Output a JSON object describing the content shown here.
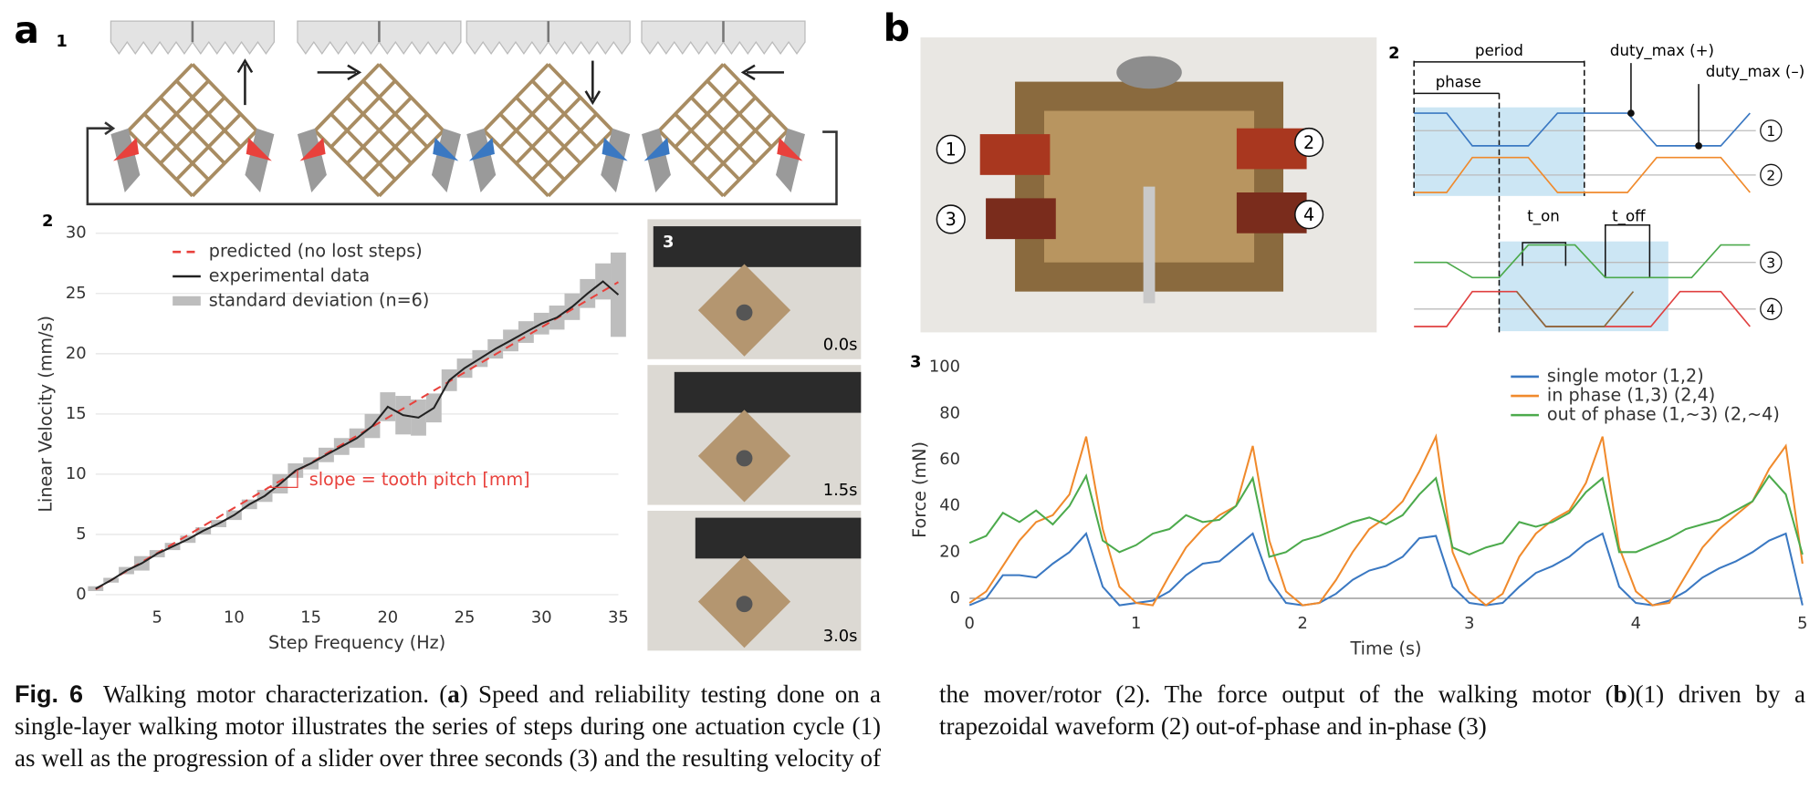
{
  "panels": {
    "a": "a",
    "b": "b",
    "a1": "1",
    "a2": "2",
    "a3": "3",
    "b1": "1",
    "b2": "2",
    "b3": "3"
  },
  "photo_a3": {
    "times": [
      "0.0s",
      "1.5s",
      "3.0s"
    ]
  },
  "photo_b1": {
    "labels": [
      "1",
      "2",
      "3",
      "4"
    ]
  },
  "waveform": {
    "period": "period",
    "phase": "phase",
    "duty_max_pos": "duty_max (+)",
    "duty_max_neg": "duty_max (–)",
    "t_on": "t_on",
    "t_off": "t_off",
    "channels": [
      "1",
      "2",
      "3",
      "4"
    ]
  },
  "caption": [
    "Fig. 6",
    "Walking motor characterization. (",
    "a",
    ") Speed and reliability testing done on a single-layer walking motor illustrates the series of steps during one actuation cycle (1) as well as the progression of a slider over three seconds (3) and the resulting velocity of the mover/rotor (2). The force output of the walking motor (",
    "b",
    ")(1) driven by a trapezoidal waveform (2) out-of-phase and in-phase (3)"
  ],
  "chart_data": [
    {
      "type": "line",
      "xlabel": "Step Frequency (Hz)",
      "ylabel": "Linear Velocity (mm/s)",
      "annotation": "slope = tooth pitch [mm]",
      "x": [
        1,
        2,
        3,
        4,
        5,
        6,
        7,
        8,
        9,
        10,
        11,
        12,
        13,
        14,
        15,
        16,
        17,
        18,
        19,
        20,
        21,
        22,
        23,
        24,
        25,
        26,
        27,
        28,
        29,
        30,
        31,
        32,
        33,
        34,
        35
      ],
      "series": [
        {
          "name": "predicted (no lost steps)",
          "color": "#e8413c",
          "style": "dashed",
          "values": [
            0.45,
            1.2,
            1.95,
            2.7,
            3.45,
            4.2,
            4.95,
            5.7,
            6.45,
            7.2,
            7.95,
            8.7,
            9.45,
            10.2,
            10.95,
            11.7,
            12.45,
            13.2,
            13.95,
            14.7,
            15.45,
            16.2,
            16.95,
            17.7,
            18.45,
            19.2,
            19.95,
            20.7,
            21.45,
            22.2,
            22.95,
            23.7,
            24.45,
            25.2,
            25.95
          ]
        },
        {
          "name": "experimental data",
          "color": "#222222",
          "style": "solid",
          "values": [
            0.5,
            1.2,
            2.0,
            2.6,
            3.4,
            4.0,
            4.6,
            5.3,
            5.9,
            6.6,
            7.5,
            8.2,
            9.2,
            10.3,
            10.9,
            11.6,
            12.3,
            13.0,
            14.0,
            15.6,
            14.9,
            14.7,
            15.5,
            17.8,
            18.8,
            19.6,
            20.4,
            21.1,
            21.8,
            22.5,
            23.0,
            23.9,
            25.0,
            26.0,
            24.9
          ]
        },
        {
          "name": "standard deviation (n=6)",
          "color": "#bdbdbd",
          "style": "band",
          "values": [
            0.2,
            0.2,
            0.3,
            0.6,
            0.3,
            0.3,
            0.3,
            0.3,
            0.3,
            0.4,
            0.4,
            0.5,
            0.8,
            0.6,
            0.5,
            0.6,
            0.7,
            0.8,
            1.0,
            1.2,
            1.6,
            1.5,
            1.2,
            0.9,
            0.8,
            0.7,
            0.8,
            0.9,
            0.9,
            0.9,
            1.0,
            1.1,
            1.2,
            1.5,
            3.5
          ]
        }
      ],
      "xlim": [
        1,
        35
      ],
      "ylim": [
        0,
        30
      ],
      "xticks": [
        5,
        10,
        15,
        20,
        25,
        30,
        35
      ],
      "yticks": [
        0,
        5,
        10,
        15,
        20,
        25,
        30
      ],
      "grid": true,
      "legend": "upper left"
    },
    {
      "type": "line",
      "xlabel": "Time (s)",
      "ylabel": "Force (mN)",
      "x": [
        0,
        0.1,
        0.2,
        0.3,
        0.4,
        0.5,
        0.6,
        0.7,
        0.8,
        0.9,
        1,
        1.1,
        1.2,
        1.3,
        1.4,
        1.5,
        1.6,
        1.7,
        1.8,
        1.9,
        2,
        2.1,
        2.2,
        2.3,
        2.4,
        2.5,
        2.6,
        2.7,
        2.8,
        2.9,
        3,
        3.1,
        3.2,
        3.3,
        3.4,
        3.5,
        3.6,
        3.7,
        3.8,
        3.9,
        4,
        4.1,
        4.2,
        4.3,
        4.4,
        4.5,
        4.6,
        4.7,
        4.8,
        4.9,
        5
      ],
      "series": [
        {
          "name": "single motor (1,2)",
          "color": "#3a78c2",
          "style": "solid",
          "values": [
            -3,
            0,
            10,
            10,
            9,
            15,
            20,
            28,
            5,
            -3,
            -2,
            -1,
            3,
            10,
            15,
            16,
            22,
            28,
            8,
            -2,
            -3,
            -2,
            2,
            8,
            12,
            14,
            18,
            26,
            27,
            5,
            -2,
            -3,
            -2,
            5,
            11,
            14,
            18,
            24,
            28,
            5,
            -2,
            -3,
            -1,
            3,
            9,
            13,
            16,
            20,
            25,
            28,
            -3
          ]
        },
        {
          "name": "in phase (1,3) (2,4)",
          "color": "#f08a2c",
          "style": "solid",
          "values": [
            -2,
            3,
            14,
            25,
            33,
            36,
            45,
            70,
            30,
            5,
            -2,
            -3,
            10,
            22,
            30,
            36,
            40,
            66,
            25,
            3,
            -3,
            -2,
            8,
            20,
            30,
            35,
            42,
            55,
            70,
            20,
            3,
            -3,
            2,
            18,
            28,
            34,
            38,
            50,
            70,
            22,
            3,
            -3,
            -2,
            10,
            22,
            30,
            36,
            42,
            56,
            66,
            15
          ]
        },
        {
          "name": "out of phase (1,~3) (2,~4)",
          "color": "#4caa4c",
          "style": "solid",
          "values": [
            24,
            27,
            37,
            33,
            38,
            32,
            40,
            53,
            25,
            20,
            23,
            28,
            30,
            36,
            33,
            34,
            40,
            52,
            18,
            20,
            25,
            27,
            30,
            33,
            35,
            32,
            36,
            45,
            52,
            22,
            19,
            22,
            24,
            33,
            31,
            33,
            37,
            46,
            52,
            20,
            20,
            23,
            26,
            30,
            32,
            34,
            38,
            42,
            53,
            45,
            19
          ]
        }
      ],
      "xlim": [
        0,
        5
      ],
      "ylim": [
        -6,
        100
      ],
      "xticks": [
        0,
        1,
        2,
        3,
        4,
        5
      ],
      "yticks": [
        0,
        20,
        40,
        60,
        80,
        100
      ],
      "grid": false,
      "zero_line": true,
      "legend": "upper right"
    }
  ]
}
